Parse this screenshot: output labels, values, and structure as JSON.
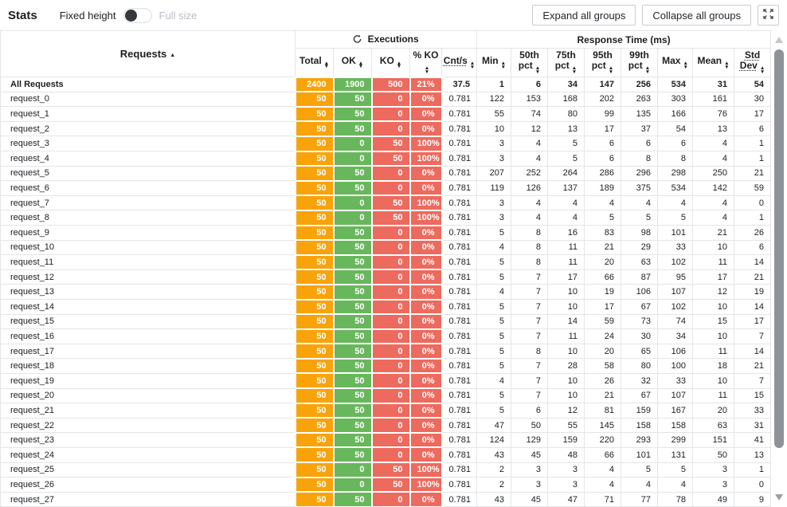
{
  "topbar": {
    "title": "Stats",
    "fixed_height_label": "Fixed height",
    "full_size_label": "Full size",
    "expand_button": "Expand all groups",
    "collapse_button": "Collapse all groups",
    "fullscreen_icon": "fullscreen-expand-icon"
  },
  "table": {
    "requests_header": "Requests",
    "requests_sort": "asc",
    "groups": {
      "executions": "Executions",
      "executions_icon": "executions-refresh-icon",
      "response_time": "Response Time (ms)"
    },
    "columns": [
      {
        "label": "Total",
        "dotted": false,
        "color_class": "c-total"
      },
      {
        "label": "OK",
        "dotted": false,
        "color_class": "c-ok"
      },
      {
        "label": "KO",
        "dotted": false,
        "color_class": "c-ko"
      },
      {
        "label": "% KO",
        "dotted": false,
        "color_class": "c-ko"
      },
      {
        "label": "Cnt/s",
        "dotted": true,
        "color_class": ""
      },
      {
        "label": "Min",
        "dotted": false,
        "color_class": ""
      },
      {
        "label": "50th pct",
        "dotted": false,
        "color_class": ""
      },
      {
        "label": "75th pct",
        "dotted": false,
        "color_class": ""
      },
      {
        "label": "95th pct",
        "dotted": false,
        "color_class": ""
      },
      {
        "label": "99th pct",
        "dotted": false,
        "color_class": ""
      },
      {
        "label": "Max",
        "dotted": false,
        "color_class": ""
      },
      {
        "label": "Mean",
        "dotted": false,
        "color_class": ""
      },
      {
        "label": "Std Dev",
        "dotted": true,
        "color_class": ""
      }
    ],
    "colors": {
      "total": "#f9a30a",
      "ok": "#69b75d",
      "ko": "#ed6a5e"
    },
    "rows": [
      {
        "name": "All Requests",
        "bold": true,
        "values": [
          "2400",
          "1900",
          "500",
          "21%",
          "37.5",
          "1",
          "6",
          "34",
          "147",
          "256",
          "534",
          "31",
          "54"
        ]
      },
      {
        "name": "request_0",
        "bold": false,
        "values": [
          "50",
          "50",
          "0",
          "0%",
          "0.781",
          "122",
          "153",
          "168",
          "202",
          "263",
          "303",
          "161",
          "30"
        ]
      },
      {
        "name": "request_1",
        "bold": false,
        "values": [
          "50",
          "50",
          "0",
          "0%",
          "0.781",
          "55",
          "74",
          "80",
          "99",
          "135",
          "166",
          "76",
          "17"
        ]
      },
      {
        "name": "request_2",
        "bold": false,
        "values": [
          "50",
          "50",
          "0",
          "0%",
          "0.781",
          "10",
          "12",
          "13",
          "17",
          "37",
          "54",
          "13",
          "6"
        ]
      },
      {
        "name": "request_3",
        "bold": false,
        "values": [
          "50",
          "0",
          "50",
          "100%",
          "0.781",
          "3",
          "4",
          "5",
          "6",
          "6",
          "6",
          "4",
          "1"
        ]
      },
      {
        "name": "request_4",
        "bold": false,
        "values": [
          "50",
          "0",
          "50",
          "100%",
          "0.781",
          "3",
          "4",
          "5",
          "6",
          "8",
          "8",
          "4",
          "1"
        ]
      },
      {
        "name": "request_5",
        "bold": false,
        "values": [
          "50",
          "50",
          "0",
          "0%",
          "0.781",
          "207",
          "252",
          "264",
          "286",
          "296",
          "298",
          "250",
          "21"
        ]
      },
      {
        "name": "request_6",
        "bold": false,
        "values": [
          "50",
          "50",
          "0",
          "0%",
          "0.781",
          "119",
          "126",
          "137",
          "189",
          "375",
          "534",
          "142",
          "59"
        ]
      },
      {
        "name": "request_7",
        "bold": false,
        "values": [
          "50",
          "0",
          "50",
          "100%",
          "0.781",
          "3",
          "4",
          "4",
          "4",
          "4",
          "4",
          "4",
          "0"
        ]
      },
      {
        "name": "request_8",
        "bold": false,
        "values": [
          "50",
          "0",
          "50",
          "100%",
          "0.781",
          "3",
          "4",
          "4",
          "5",
          "5",
          "5",
          "4",
          "1"
        ]
      },
      {
        "name": "request_9",
        "bold": false,
        "values": [
          "50",
          "50",
          "0",
          "0%",
          "0.781",
          "5",
          "8",
          "16",
          "83",
          "98",
          "101",
          "21",
          "26"
        ]
      },
      {
        "name": "request_10",
        "bold": false,
        "values": [
          "50",
          "50",
          "0",
          "0%",
          "0.781",
          "4",
          "8",
          "11",
          "21",
          "29",
          "33",
          "10",
          "6"
        ]
      },
      {
        "name": "request_11",
        "bold": false,
        "values": [
          "50",
          "50",
          "0",
          "0%",
          "0.781",
          "5",
          "8",
          "11",
          "20",
          "63",
          "102",
          "11",
          "14"
        ]
      },
      {
        "name": "request_12",
        "bold": false,
        "values": [
          "50",
          "50",
          "0",
          "0%",
          "0.781",
          "5",
          "7",
          "17",
          "66",
          "87",
          "95",
          "17",
          "21"
        ]
      },
      {
        "name": "request_13",
        "bold": false,
        "values": [
          "50",
          "50",
          "0",
          "0%",
          "0.781",
          "4",
          "7",
          "10",
          "19",
          "106",
          "107",
          "12",
          "19"
        ]
      },
      {
        "name": "request_14",
        "bold": false,
        "values": [
          "50",
          "50",
          "0",
          "0%",
          "0.781",
          "5",
          "7",
          "10",
          "17",
          "67",
          "102",
          "10",
          "14"
        ]
      },
      {
        "name": "request_15",
        "bold": false,
        "values": [
          "50",
          "50",
          "0",
          "0%",
          "0.781",
          "5",
          "7",
          "14",
          "59",
          "73",
          "74",
          "15",
          "17"
        ]
      },
      {
        "name": "request_16",
        "bold": false,
        "values": [
          "50",
          "50",
          "0",
          "0%",
          "0.781",
          "5",
          "7",
          "11",
          "24",
          "30",
          "34",
          "10",
          "7"
        ]
      },
      {
        "name": "request_17",
        "bold": false,
        "values": [
          "50",
          "50",
          "0",
          "0%",
          "0.781",
          "5",
          "8",
          "10",
          "20",
          "65",
          "106",
          "11",
          "14"
        ]
      },
      {
        "name": "request_18",
        "bold": false,
        "values": [
          "50",
          "50",
          "0",
          "0%",
          "0.781",
          "5",
          "7",
          "28",
          "58",
          "80",
          "100",
          "18",
          "21"
        ]
      },
      {
        "name": "request_19",
        "bold": false,
        "values": [
          "50",
          "50",
          "0",
          "0%",
          "0.781",
          "4",
          "7",
          "10",
          "26",
          "32",
          "33",
          "10",
          "7"
        ]
      },
      {
        "name": "request_20",
        "bold": false,
        "values": [
          "50",
          "50",
          "0",
          "0%",
          "0.781",
          "5",
          "7",
          "10",
          "21",
          "67",
          "107",
          "11",
          "15"
        ]
      },
      {
        "name": "request_21",
        "bold": false,
        "values": [
          "50",
          "50",
          "0",
          "0%",
          "0.781",
          "5",
          "6",
          "12",
          "81",
          "159",
          "167",
          "20",
          "33"
        ]
      },
      {
        "name": "request_22",
        "bold": false,
        "values": [
          "50",
          "50",
          "0",
          "0%",
          "0.781",
          "47",
          "50",
          "55",
          "145",
          "158",
          "158",
          "63",
          "31"
        ]
      },
      {
        "name": "request_23",
        "bold": false,
        "values": [
          "50",
          "50",
          "0",
          "0%",
          "0.781",
          "124",
          "129",
          "159",
          "220",
          "293",
          "299",
          "151",
          "41"
        ]
      },
      {
        "name": "request_24",
        "bold": false,
        "values": [
          "50",
          "50",
          "0",
          "0%",
          "0.781",
          "43",
          "45",
          "48",
          "66",
          "101",
          "131",
          "50",
          "13"
        ]
      },
      {
        "name": "request_25",
        "bold": false,
        "values": [
          "50",
          "0",
          "50",
          "100%",
          "0.781",
          "2",
          "3",
          "3",
          "4",
          "5",
          "5",
          "3",
          "1"
        ]
      },
      {
        "name": "request_26",
        "bold": false,
        "values": [
          "50",
          "0",
          "50",
          "100%",
          "0.781",
          "2",
          "3",
          "3",
          "4",
          "4",
          "4",
          "3",
          "0"
        ]
      },
      {
        "name": "request_27",
        "bold": false,
        "values": [
          "50",
          "50",
          "0",
          "0%",
          "0.781",
          "43",
          "45",
          "47",
          "71",
          "77",
          "78",
          "49",
          "9"
        ]
      }
    ]
  }
}
